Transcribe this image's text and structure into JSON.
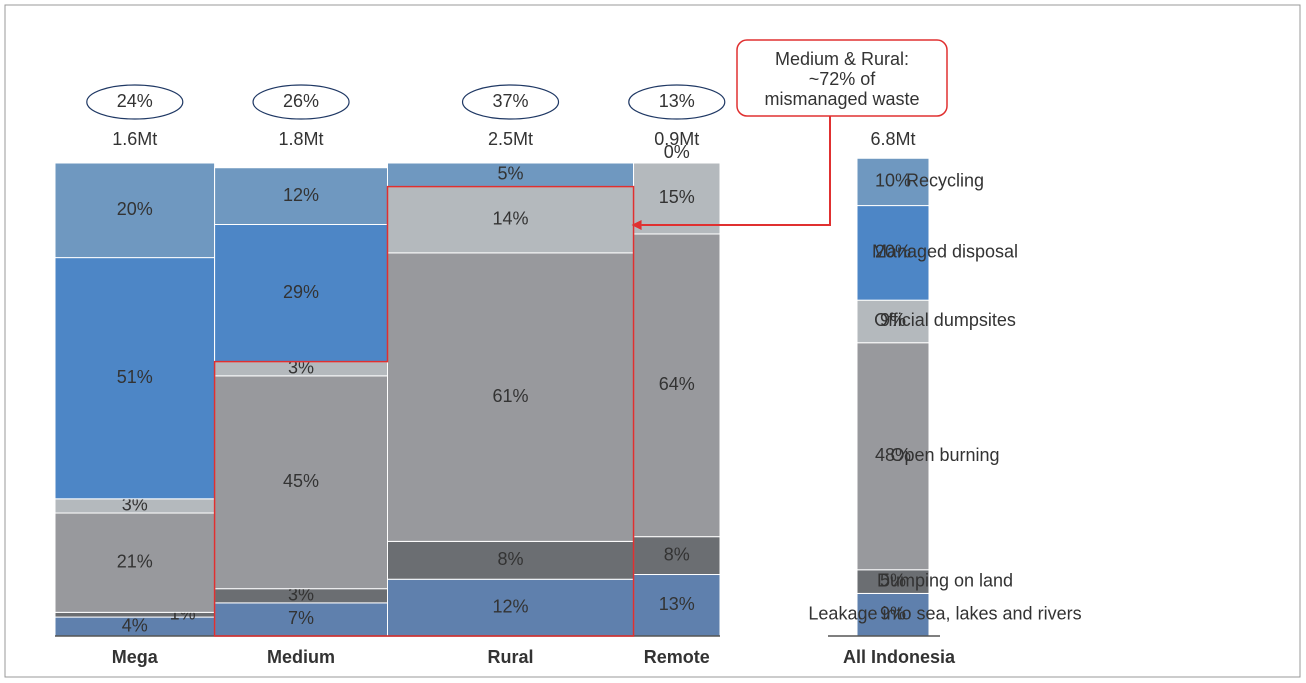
{
  "chart_data": {
    "type": "marimekko",
    "categories": [
      "Mega",
      "Medium",
      "Rural",
      "Remote"
    ],
    "widths": {
      "values": [
        24,
        26,
        37,
        13
      ],
      "value_labels": [
        "24%",
        "26%",
        "37%",
        "13%"
      ]
    },
    "totals": {
      "values": [
        1.6,
        1.8,
        2.5,
        0.9
      ],
      "value_labels": [
        "1.6Mt",
        "1.8Mt",
        "2.5Mt",
        "0.9Mt"
      ]
    },
    "series": [
      {
        "name": "Leakage into sea, lakes and rivers",
        "color": "#5f80ad",
        "values": [
          4,
          7,
          12,
          13
        ],
        "value_labels": [
          "4%",
          "7%",
          "12%",
          "13%"
        ]
      },
      {
        "name": "Dumping on land",
        "color": "#6b6e72",
        "values": [
          1,
          3,
          8,
          8
        ],
        "value_labels": [
          "1%",
          "3%",
          "8%",
          "8%"
        ]
      },
      {
        "name": "Open burning",
        "color": "#98999d",
        "values": [
          21,
          45,
          61,
          64
        ],
        "value_labels": [
          "21%",
          "45%",
          "61%",
          "64%"
        ]
      },
      {
        "name": "Official dumpsites",
        "color": "#b4b9bd",
        "values": [
          3,
          3,
          14,
          15
        ],
        "value_labels": [
          "3%",
          "3%",
          "14%",
          "15%"
        ]
      },
      {
        "name": "Managed disposal",
        "color": "#4d86c6",
        "values": [
          51,
          29,
          null,
          null
        ],
        "value_labels": [
          "51%",
          "29%",
          null,
          null
        ]
      },
      {
        "name": "Recycling",
        "color": "#6f98c0",
        "values": [
          20,
          12,
          5,
          0
        ],
        "value_labels": [
          "20%",
          "12%",
          "5%",
          "0%"
        ]
      }
    ],
    "total_column": {
      "category": "All Indonesia",
      "total": {
        "value": 6.8,
        "label": "6.8Mt"
      },
      "values": [
        9,
        5,
        48,
        9,
        20,
        10
      ],
      "value_labels": [
        "9%",
        "5%",
        "48%",
        "9%",
        "20%",
        "10%"
      ]
    },
    "annotation": [
      "Medium & Rural:",
      "~72% of",
      "mismanaged waste"
    ]
  }
}
